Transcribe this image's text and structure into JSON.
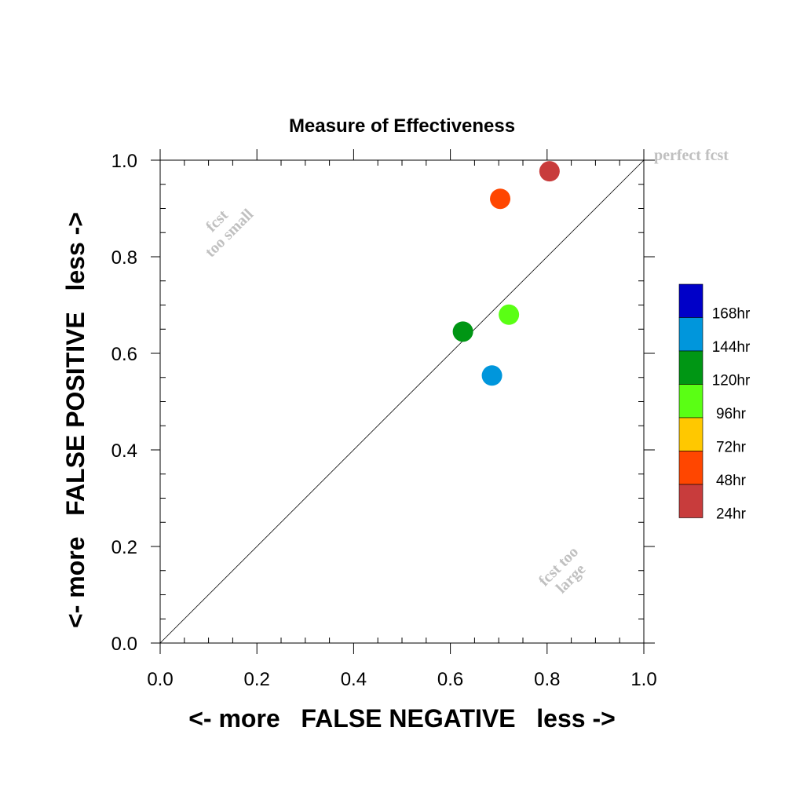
{
  "chart_data": {
    "type": "scatter",
    "title": "Measure of Effectiveness",
    "xlabel": "<- more   FALSE NEGATIVE   less ->",
    "ylabel": "<- more   FALSE POSITIVE   less ->",
    "xlim": [
      0.0,
      1.0
    ],
    "ylim": [
      0.0,
      1.0
    ],
    "x_ticks": [
      "0.0",
      "0.2",
      "0.4",
      "0.6",
      "0.8",
      "1.0"
    ],
    "y_ticks": [
      "0.0",
      "0.2",
      "0.4",
      "0.6",
      "0.8",
      "1.0"
    ],
    "x_tick_values": [
      0.0,
      0.2,
      0.4,
      0.6,
      0.8,
      1.0
    ],
    "y_tick_values": [
      0.0,
      0.2,
      0.4,
      0.6,
      0.8,
      1.0
    ],
    "grid": false,
    "diagonal_reference_line": true,
    "legend_position": "right",
    "annotations": {
      "perfect": "perfect fcst",
      "small_line1": "fcst",
      "small_line2": "too small",
      "large_line1": "fcst too",
      "large_line2": "large"
    },
    "legend": [
      {
        "label": "168hr",
        "color": "#0000c8"
      },
      {
        "label": "144hr",
        "color": "#0096dc"
      },
      {
        "label": "120hr",
        "color": "#009614"
      },
      {
        "label": "96hr",
        "color": "#5aff14"
      },
      {
        "label": "72hr",
        "color": "#ffc800"
      },
      {
        "label": "48hr",
        "color": "#ff4600"
      },
      {
        "label": "24hr",
        "color": "#c83c3c"
      }
    ],
    "points": [
      {
        "name": "24hr",
        "x": 0.805,
        "y": 0.977,
        "color": "#c83c3c"
      },
      {
        "name": "48hr",
        "x": 0.703,
        "y": 0.92,
        "color": "#ff4600"
      },
      {
        "name": "96hr",
        "x": 0.721,
        "y": 0.68,
        "color": "#5aff14"
      },
      {
        "name": "120hr",
        "x": 0.626,
        "y": 0.645,
        "color": "#009614"
      },
      {
        "name": "144hr",
        "x": 0.686,
        "y": 0.554,
        "color": "#0096dc"
      }
    ]
  }
}
